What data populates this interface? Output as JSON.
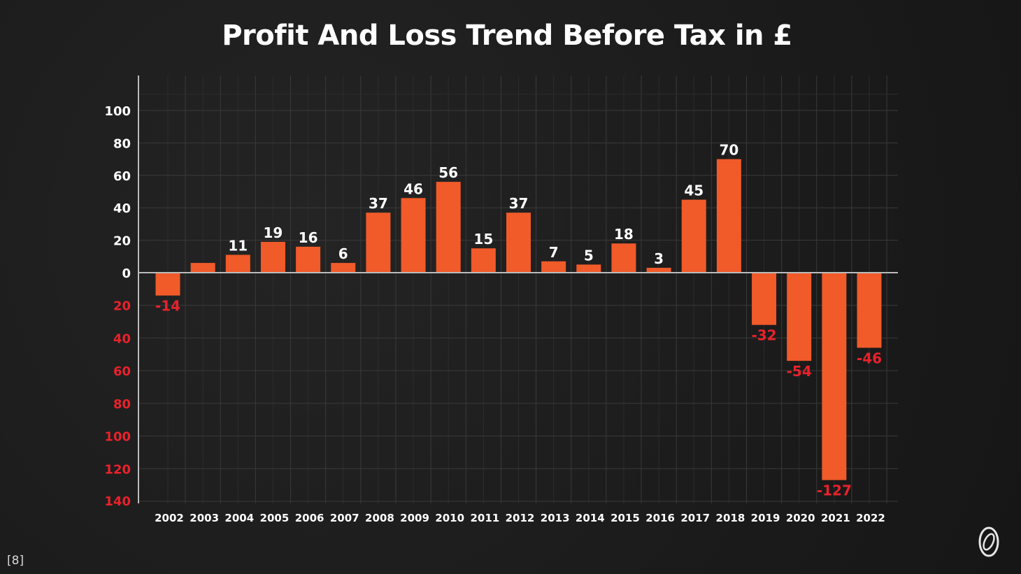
{
  "title": "Profit And Loss Trend Before Tax in £",
  "footnote": "[8]",
  "logo_icon": "oval-clip-logo-icon",
  "colors": {
    "bar": "#f15a29",
    "positive_label": "#ffffff",
    "negative_label": "#e8222b",
    "negative_tick": "#e8222b",
    "positive_tick": "#ffffff",
    "grid": "#3a3a3a",
    "axis": "#bbbbbb"
  },
  "chart_data": {
    "type": "bar",
    "title": "Profit And Loss Trend Before Tax in £",
    "xlabel": "",
    "ylabel": "",
    "ylim": [
      -140,
      100
    ],
    "grid": true,
    "legend": "none",
    "categories": [
      "2002",
      "2003",
      "2004",
      "2005",
      "2006",
      "2007",
      "2008",
      "2009",
      "2010",
      "2011",
      "2012",
      "2013",
      "2014",
      "2015",
      "2016",
      "2017",
      "2018",
      "2019",
      "2020",
      "2021",
      "2022"
    ],
    "values": [
      -14,
      6,
      11,
      19,
      16,
      6,
      37,
      46,
      56,
      15,
      37,
      7,
      5,
      18,
      3,
      45,
      70,
      -32,
      -54,
      -127,
      -46
    ],
    "data_labels": [
      "-14",
      "",
      "11",
      "19",
      "16",
      "6",
      "37",
      "46",
      "56",
      "15",
      "37",
      "7",
      "5",
      "18",
      "3",
      "45",
      "70",
      "-32",
      "-54",
      "-127",
      "-46"
    ],
    "y_ticks_positive": [
      "100",
      "80",
      "60",
      "40",
      "20",
      "0"
    ],
    "y_ticks_negative": [
      "20",
      "40",
      "60",
      "80",
      "100",
      "120",
      "140"
    ]
  }
}
